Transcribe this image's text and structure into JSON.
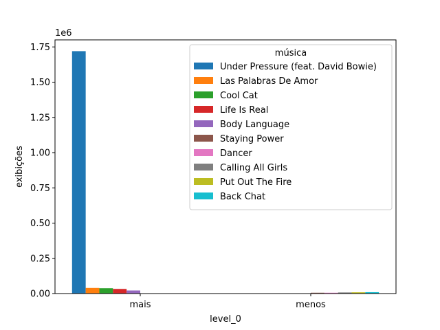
{
  "chart_data": {
    "type": "bar",
    "categories": [
      "mais",
      "menos"
    ],
    "xlabel": "level_0",
    "ylabel": "exibições",
    "y_offset_text": "1e6",
    "ylim": [
      0,
      1800000
    ],
    "yticks": [
      0,
      250000,
      500000,
      750000,
      1000000,
      1250000,
      1500000,
      1750000
    ],
    "ytick_labels": [
      "0.00",
      "0.25",
      "0.50",
      "0.75",
      "1.00",
      "1.25",
      "1.50",
      "1.75"
    ],
    "grid": false,
    "legend": {
      "title": "música",
      "placement": "top-right"
    },
    "series": [
      {
        "name": "Under Pressure (feat. David Bowie)",
        "color": "#1f77b4",
        "values": [
          1720000,
          0
        ]
      },
      {
        "name": "Las Palabras De Amor",
        "color": "#ff7f0e",
        "values": [
          40000,
          0
        ]
      },
      {
        "name": "Cool Cat",
        "color": "#2ca02c",
        "values": [
          38000,
          0
        ]
      },
      {
        "name": "Life Is Real",
        "color": "#d62728",
        "values": [
          33000,
          0
        ]
      },
      {
        "name": "Body Language",
        "color": "#9467bd",
        "values": [
          22000,
          0
        ]
      },
      {
        "name": "Staying Power",
        "color": "#8c564b",
        "values": [
          0,
          6000
        ]
      },
      {
        "name": "Dancer",
        "color": "#e377c2",
        "values": [
          0,
          6000
        ]
      },
      {
        "name": "Calling All Girls",
        "color": "#7f7f7f",
        "values": [
          0,
          8000
        ]
      },
      {
        "name": "Put Out The Fire",
        "color": "#bcbd22",
        "values": [
          0,
          9000
        ]
      },
      {
        "name": "Back Chat",
        "color": "#17becf",
        "values": [
          0,
          10000
        ]
      }
    ]
  }
}
